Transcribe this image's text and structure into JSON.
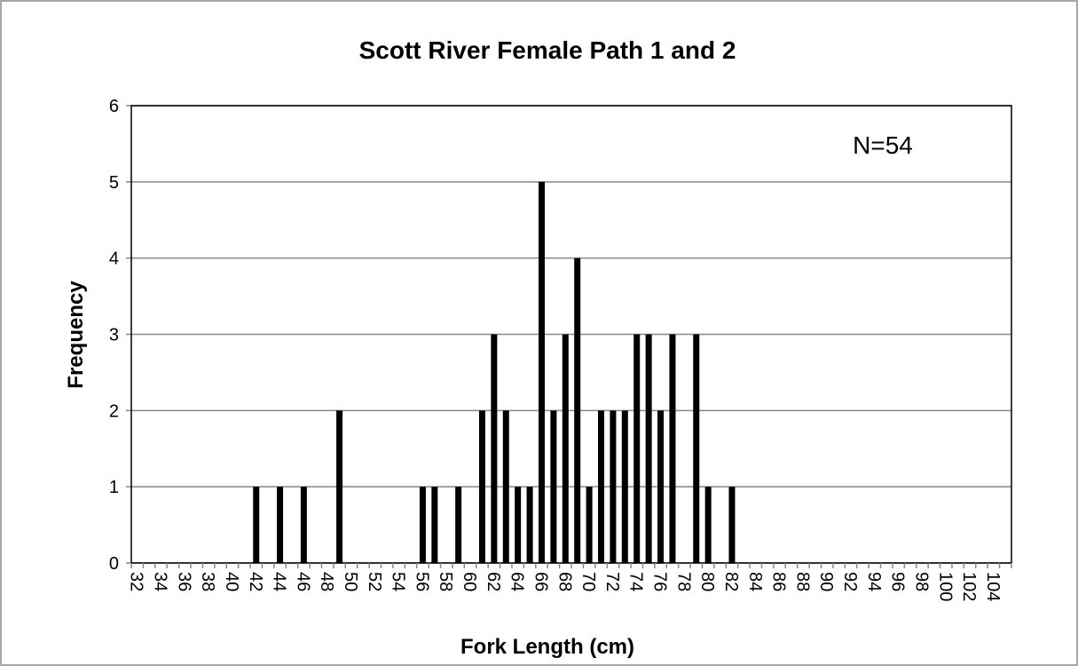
{
  "chart_data": {
    "type": "bar",
    "title": "Scott River Female Path 1 and 2",
    "x_label": "Fork Length (cm)",
    "y_label": "Frequency",
    "annotation": "N=54",
    "categories": [
      "32",
      null,
      "34",
      null,
      "36",
      null,
      "38",
      null,
      "40",
      null,
      "42",
      null,
      "44",
      null,
      "46",
      null,
      "48",
      null,
      "50",
      null,
      "52",
      null,
      "54",
      null,
      "56",
      null,
      "58",
      null,
      "60",
      null,
      "62",
      null,
      "64",
      null,
      "66",
      null,
      "68",
      null,
      "70",
      null,
      "72",
      null,
      "74",
      null,
      "76",
      null,
      "78",
      null,
      "80",
      null,
      "82",
      null,
      "84",
      null,
      "86",
      null,
      "88",
      null,
      "90",
      null,
      "92",
      null,
      "94",
      null,
      "96",
      null,
      "98",
      null,
      "100",
      null,
      "102",
      null,
      "104",
      null
    ],
    "values": [
      0,
      0,
      0,
      0,
      0,
      0,
      0,
      0,
      0,
      0,
      1,
      0,
      1,
      0,
      1,
      0,
      0,
      2,
      0,
      0,
      0,
      0,
      0,
      0,
      1,
      1,
      0,
      1,
      0,
      2,
      3,
      2,
      1,
      1,
      5,
      2,
      3,
      4,
      1,
      2,
      2,
      2,
      3,
      3,
      2,
      3,
      0,
      3,
      1,
      0,
      1,
      0,
      0,
      0,
      0,
      0,
      0,
      0,
      0,
      0,
      0,
      0,
      0,
      0,
      0,
      0,
      0,
      0,
      0,
      0,
      0,
      0,
      0,
      0
    ],
    "color": "#000000",
    "ylim": [
      0,
      6
    ],
    "yticks": [
      0,
      1,
      2,
      3,
      4,
      5,
      6
    ],
    "grid": true
  }
}
